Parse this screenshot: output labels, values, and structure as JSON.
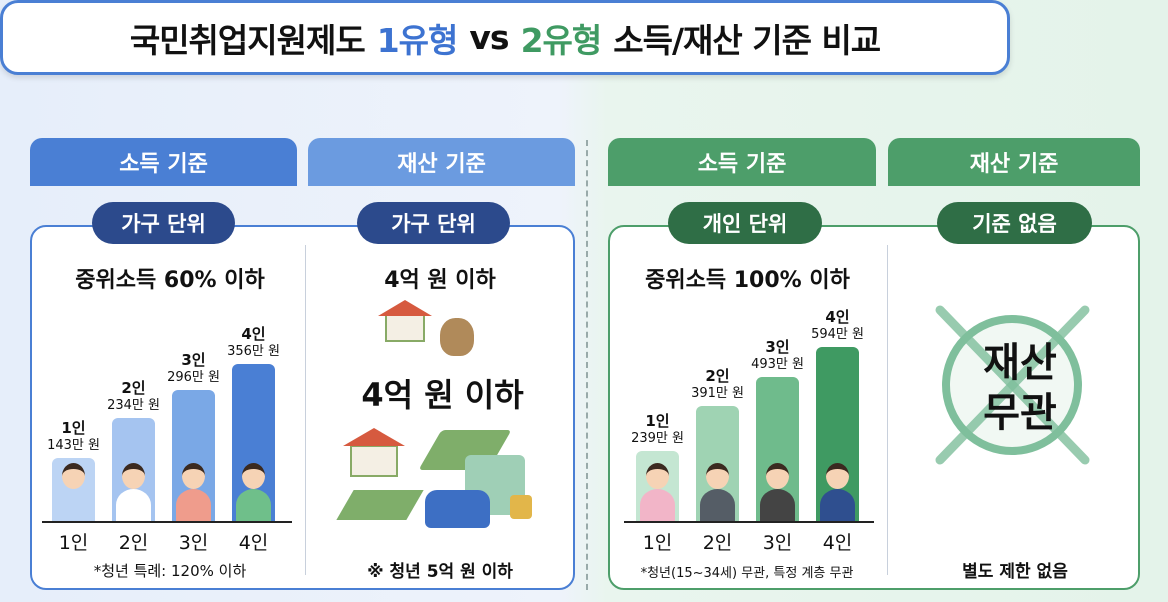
{
  "title": {
    "part1": "국민취업지원제도",
    "part2": "1유형",
    "part3": "vs",
    "part4": "2유형",
    "part5": "소득/재산 기준 비교"
  },
  "colors": {
    "blue": "#4a7fd4",
    "light_blue": "#6b9be0",
    "navy": "#2c4a8c",
    "green": "#4d9e6a",
    "dark_green": "#2f6e46"
  },
  "type1": {
    "income": {
      "tab": "소득 기준",
      "pill": "가구 단위",
      "subtitle": "중위소득 60% 이하",
      "note": "*청년 특례: 120% 이하"
    },
    "asset": {
      "tab": "재산 기준",
      "pill": "가구 단위",
      "subtitle": "4억 원 이하",
      "big_text": "4억 원 이하",
      "note": "※ 청년 5억 원 이하"
    }
  },
  "type2": {
    "income": {
      "tab": "소득 기준",
      "pill": "개인 단위",
      "subtitle": "중위소득 100% 이하",
      "note": "*청년(15~34세) 무관, 특정 계층 무관"
    },
    "asset": {
      "tab": "재산 기준",
      "pill": "기준 없음",
      "stamp_line1": "재산",
      "stamp_line2": "무관",
      "note": "별도 제한 없음"
    }
  },
  "chart_data": [
    {
      "type": "bar",
      "categories": [
        "1인",
        "2인",
        "3인",
        "4인"
      ],
      "values": [
        143,
        234,
        296,
        356
      ],
      "value_labels": [
        "143만 원",
        "234만 원",
        "296만 원",
        "356만 원"
      ],
      "unit": "만 원",
      "colors": [
        "#bcd4f4",
        "#a5c4f0",
        "#7aa8e6",
        "#4a7fd4"
      ]
    },
    {
      "type": "bar",
      "categories": [
        "1인",
        "2인",
        "3인",
        "4인"
      ],
      "values": [
        239,
        391,
        493,
        594
      ],
      "value_labels": [
        "239만 원",
        "391만 원",
        "493만 원",
        "594만 원"
      ],
      "unit": "만 원",
      "colors": [
        "#c4e6d2",
        "#9fd3b3",
        "#6fbb8c",
        "#3f9a62"
      ]
    }
  ]
}
